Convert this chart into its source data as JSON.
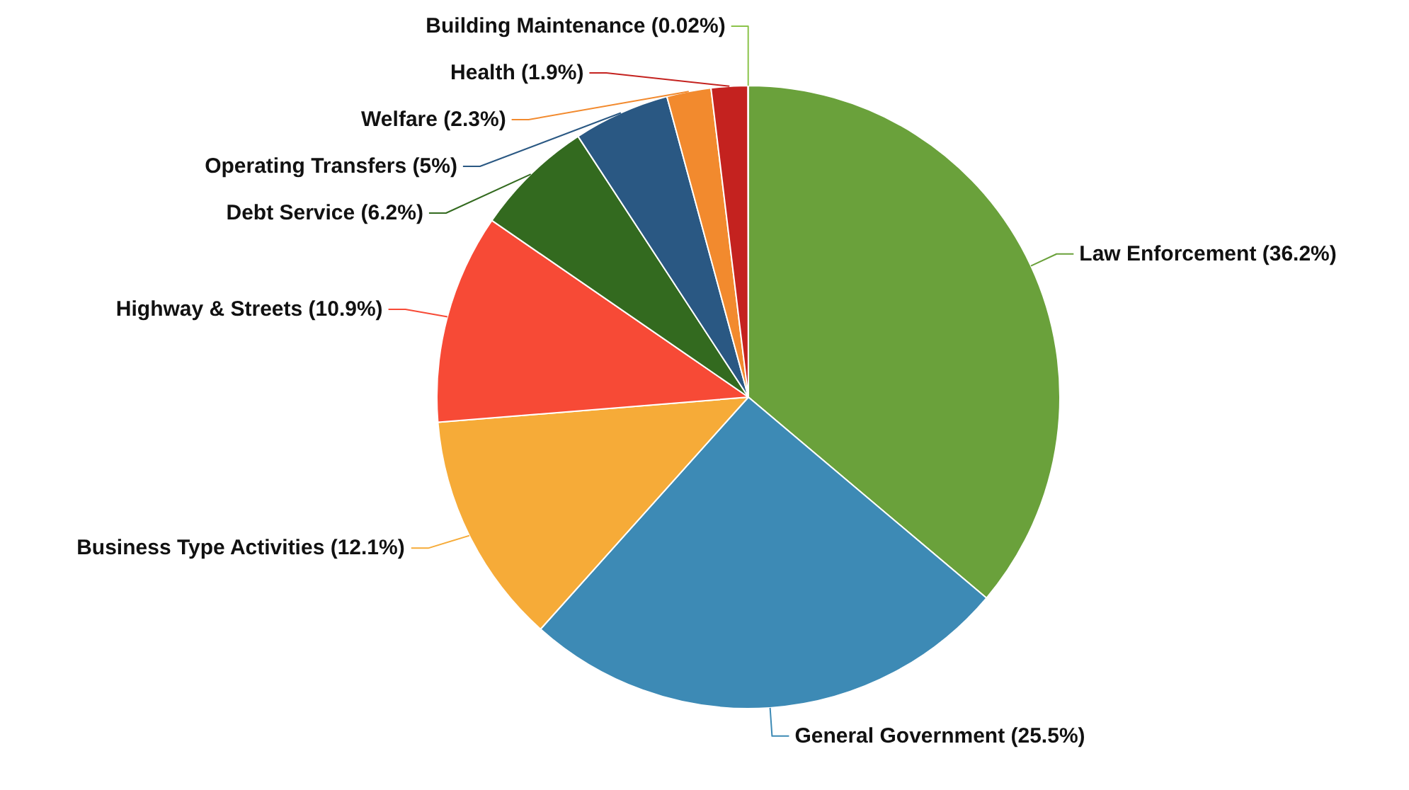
{
  "chart_data": {
    "type": "pie",
    "categories": [
      "Law Enforcement (36.2%)",
      "General Government (25.5%)",
      "Business Type Activities (12.1%)",
      "Highway & Streets (10.9%)",
      "Debt Service (6.2%)",
      "Operating Transfers (5%)",
      "Welfare (2.3%)",
      "Health (1.9%)",
      "Building Maintenance (0.02%)"
    ],
    "values": [
      36.2,
      25.5,
      12.1,
      10.9,
      6.2,
      5,
      2.3,
      1.9,
      0.02
    ],
    "colors": [
      "#6aa13b",
      "#3d8ab5",
      "#f6ab38",
      "#f74a36",
      "#336a1f",
      "#2a5883",
      "#f28a2e",
      "#c4221f",
      "#8bc34a"
    ]
  }
}
